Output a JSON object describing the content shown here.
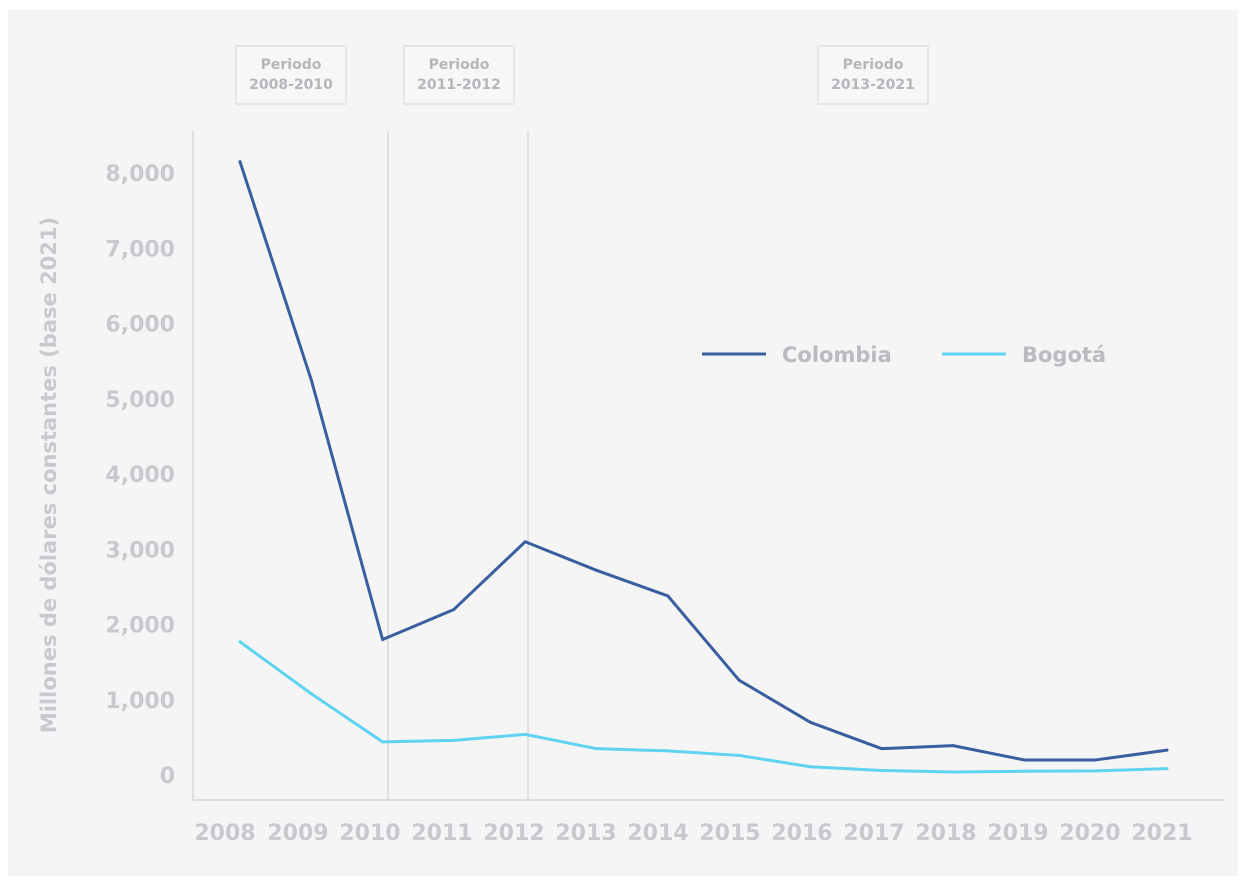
{
  "chart_data": {
    "type": "line",
    "x": [
      "2008",
      "2009",
      "2010",
      "2011",
      "2012",
      "2013",
      "2014",
      "2015",
      "2016",
      "2017",
      "2018",
      "2019",
      "2020",
      "2021"
    ],
    "series": [
      {
        "name": "Colombia",
        "color": "#3a5fa0",
        "values": [
          8150,
          5250,
          1800,
          2200,
          3100,
          2720,
          2380,
          1260,
          700,
          350,
          390,
          200,
          200,
          330
        ]
      },
      {
        "name": "Bogotá",
        "color": "#5fd3f0",
        "values": [
          1770,
          1080,
          440,
          460,
          540,
          350,
          320,
          260,
          110,
          60,
          40,
          50,
          55,
          85
        ]
      }
    ],
    "yticks": [
      "0",
      "1,000",
      "2,000",
      "3,000",
      "4,000",
      "5,000",
      "6,000",
      "7,000",
      "8,000"
    ],
    "ylabel": "Millones de dólares constantes (base 2021)",
    "xlabel": "",
    "ylim": [
      0,
      8000
    ],
    "periods": [
      {
        "line1": "Periodo",
        "line2": "2008-2010"
      },
      {
        "line1": "Periodo",
        "line2": "2011-2012"
      },
      {
        "line1": "Periodo",
        "line2": "2013-2021"
      }
    ],
    "divider_years": [
      "2010",
      "2012"
    ],
    "legend_position": "center-right",
    "grid": false
  }
}
